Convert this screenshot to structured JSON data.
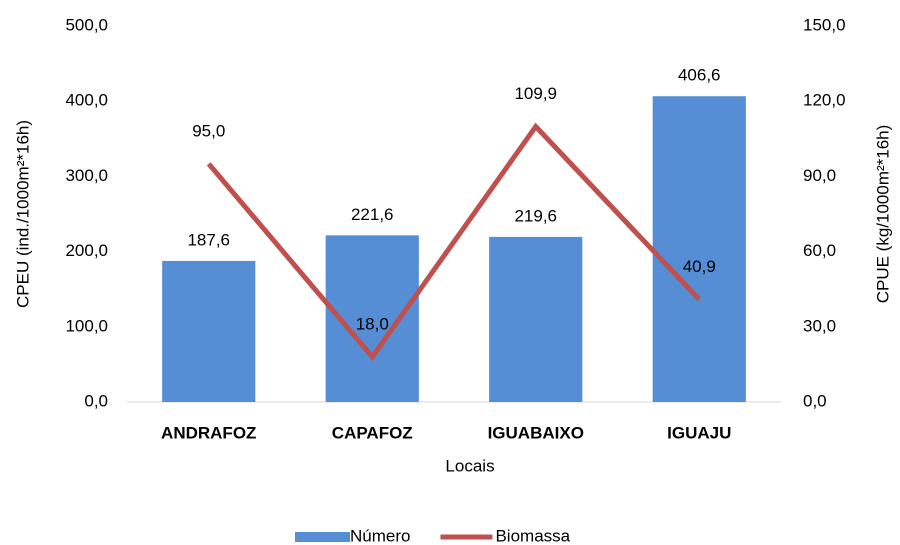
{
  "chart_data": {
    "type": "bar",
    "categories": [
      "ANDRAFOZ",
      "CAPAFOZ",
      "IGUABAIXO",
      "IGUAJU"
    ],
    "xlabel": "Locais",
    "ylabel": "CPEU (ind./1000m²*16h)",
    "y2label": "CPUE (kg/1000m²*16h)",
    "series": [
      {
        "name": "Número",
        "type": "bar",
        "color": "#558ed5",
        "values": [
          187.6,
          221.6,
          219.6,
          406.6
        ],
        "value_labels": [
          "187,6",
          "221,6",
          "219,6",
          "406,6"
        ]
      },
      {
        "name": "Biomassa",
        "type": "line",
        "axis": "y2",
        "color": "#c0504d",
        "values": [
          95.0,
          18.0,
          109.9,
          40.9
        ],
        "value_labels": [
          "95,0",
          "18,0",
          "109,9",
          "40,9"
        ]
      }
    ],
    "ylim": [
      0,
      500
    ],
    "yticks": [
      {
        "value": 0,
        "label": "0,0"
      },
      {
        "value": 100,
        "label": "100,0"
      },
      {
        "value": 200,
        "label": "200,0"
      },
      {
        "value": 300,
        "label": "300,0"
      },
      {
        "value": 400,
        "label": "400,0"
      },
      {
        "value": 500,
        "label": "500,0"
      }
    ],
    "y2lim": [
      0,
      150
    ],
    "y2ticks": [
      {
        "value": 0,
        "label": "0,0"
      },
      {
        "value": 30,
        "label": "30,0"
      },
      {
        "value": 60,
        "label": "60,0"
      },
      {
        "value": 90,
        "label": "90,0"
      },
      {
        "value": 120,
        "label": "120,0"
      },
      {
        "value": 150,
        "label": "150,0"
      }
    ],
    "grid": false,
    "legend": "bottom"
  }
}
